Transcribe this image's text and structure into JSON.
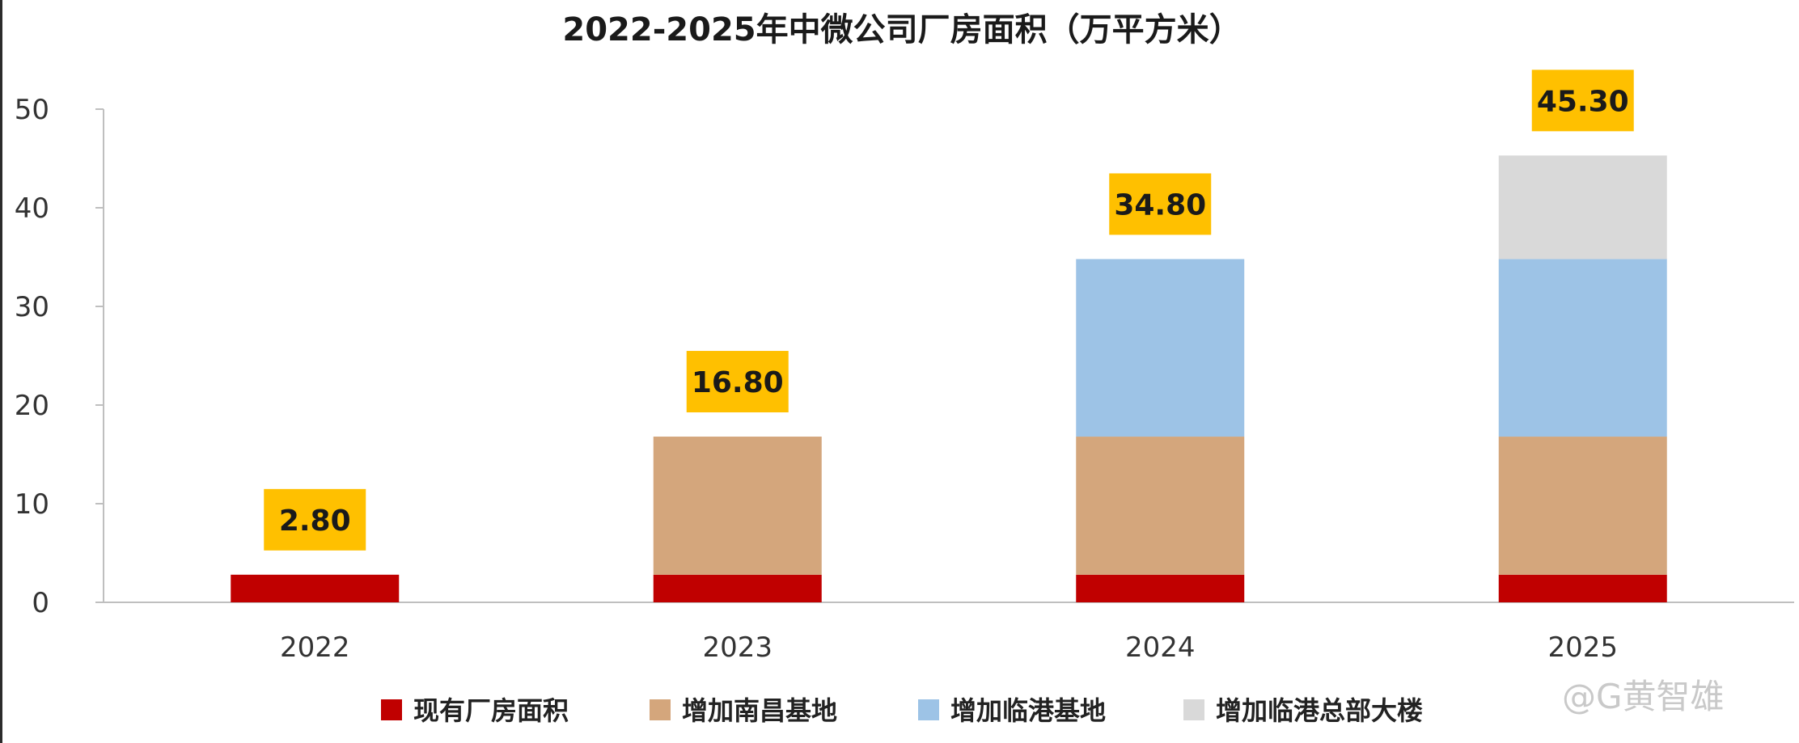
{
  "chart_data": {
    "type": "bar",
    "stacked": true,
    "title": "2022-2025年中微公司厂房面积（万平方米）",
    "xlabel": "",
    "ylabel": "",
    "categories": [
      "2022",
      "2023",
      "2024",
      "2025"
    ],
    "ylim": [
      0,
      50
    ],
    "yticks": [
      0,
      10,
      20,
      30,
      40,
      50
    ],
    "grid": false,
    "legend_position": "bottom",
    "series": [
      {
        "name": "现有厂房面积",
        "color": "#c00000",
        "values": [
          2.8,
          2.8,
          2.8,
          2.8
        ]
      },
      {
        "name": "增加南昌基地",
        "color": "#d4a67c",
        "values": [
          0,
          14.0,
          14.0,
          14.0
        ]
      },
      {
        "name": "增加临港基地",
        "color": "#9dc3e6",
        "values": [
          0,
          0,
          18.0,
          18.0
        ]
      },
      {
        "name": "增加临港总部大楼",
        "color": "#d9d9d9",
        "values": [
          0,
          0,
          0,
          10.5
        ]
      }
    ],
    "totals": [
      "2.80",
      "16.80",
      "34.80",
      "45.30"
    ],
    "total_label_color": "#ffc000"
  },
  "watermark": {
    "text": "@G黄智雄"
  }
}
